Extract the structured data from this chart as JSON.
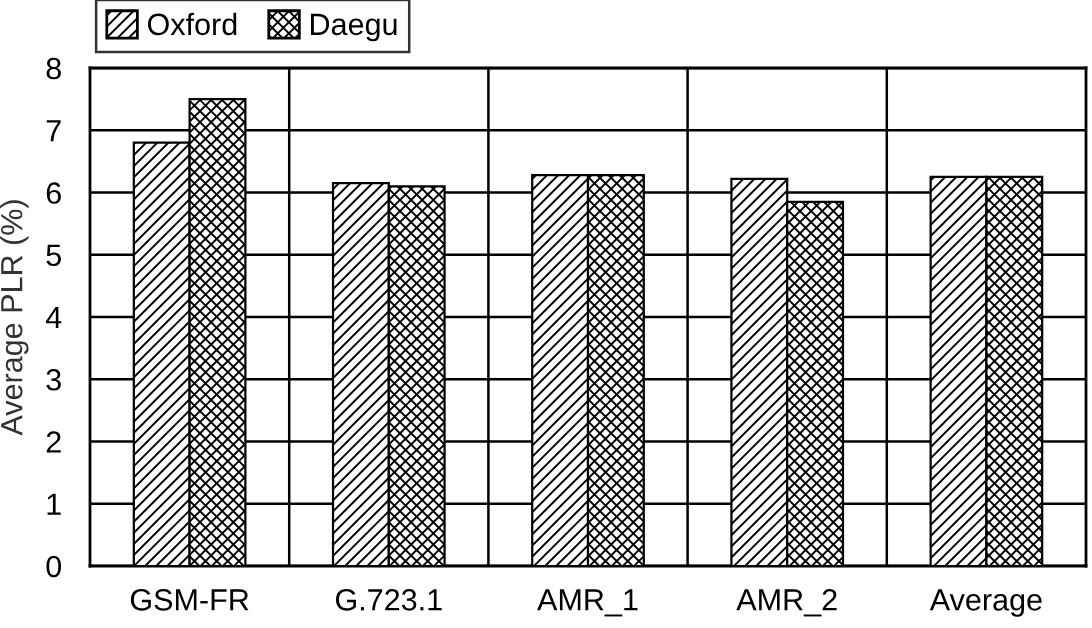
{
  "chart_data": {
    "type": "bar",
    "ylabel": "Average PLR (%)",
    "categories": [
      "GSM-FR",
      "G.723.1",
      "AMR_1",
      "AMR_2",
      "Average"
    ],
    "series": [
      {
        "name": "Oxford",
        "color": "#000000",
        "values": [
          6.8,
          6.15,
          6.28,
          6.22,
          6.25
        ]
      },
      {
        "name": "Daegu",
        "color": "#000000",
        "values": [
          7.5,
          6.1,
          6.28,
          5.85,
          6.25
        ]
      }
    ],
    "ylim": [
      0,
      8
    ],
    "yticks": [
      0,
      1,
      2,
      3,
      4,
      5,
      6,
      7,
      8
    ],
    "grid": true,
    "legend": "top left"
  }
}
